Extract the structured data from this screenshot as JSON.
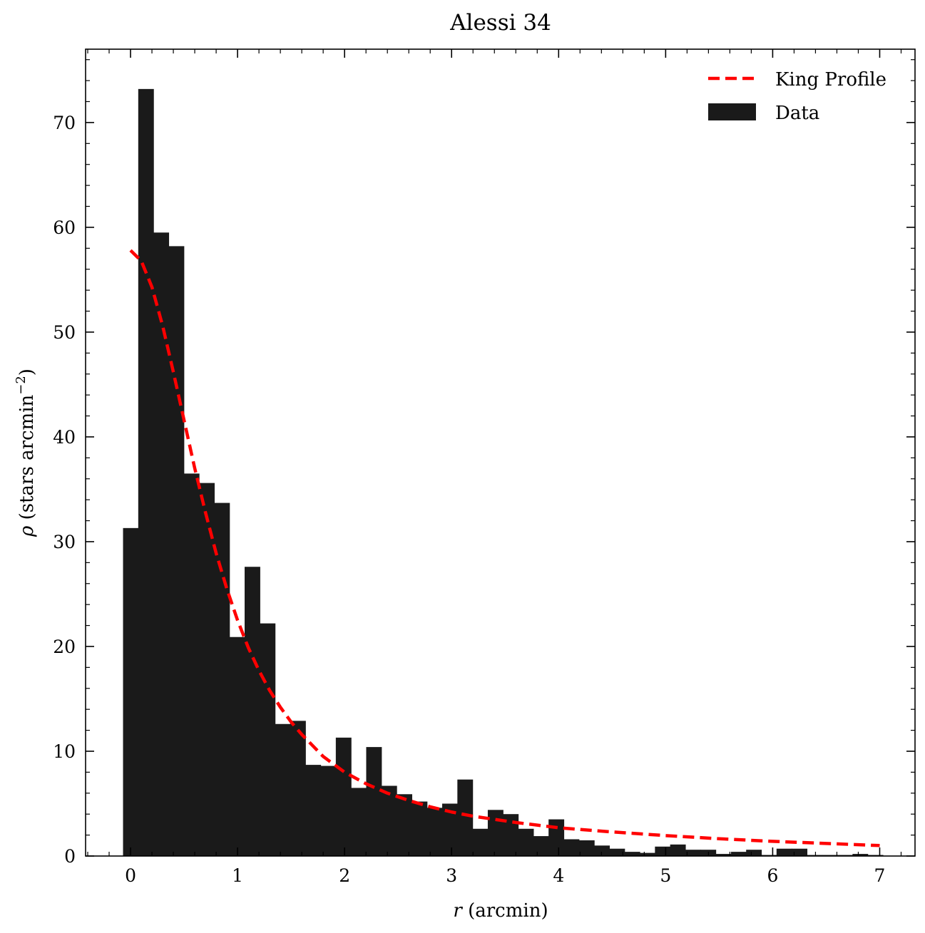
{
  "chart_data": {
    "type": "bar",
    "title": "Alessi 34",
    "xlabel_italic": "r",
    "xlabel_rest": " (arcmin)",
    "ylabel_italic": "ρ",
    "ylabel_rest": " (stars arcmin",
    "ylabel_sup": "−2",
    "ylabel_close": ")",
    "xlim": [
      -0.42,
      7.33
    ],
    "ylim": [
      0,
      77
    ],
    "xticks": [
      0,
      1,
      2,
      3,
      4,
      5,
      6,
      7
    ],
    "yticks": [
      0,
      10,
      20,
      30,
      40,
      50,
      60,
      70
    ],
    "legend": {
      "position": "top-right",
      "entries": [
        {
          "label": "King Profile",
          "kind": "line",
          "color": "#ff0000"
        },
        {
          "label": "Data",
          "kind": "patch",
          "color": "#1a1a1a"
        }
      ]
    },
    "histogram": {
      "name": "Data",
      "color": "#1a1a1a",
      "bin_width": 0.142,
      "bin_starts": [
        -0.07,
        0.072,
        0.214,
        0.356,
        0.498,
        0.64,
        0.782,
        0.924,
        1.066,
        1.208,
        1.35,
        1.492,
        1.634,
        1.776,
        1.918,
        2.06,
        2.202,
        2.344,
        2.486,
        2.628,
        2.77,
        2.912,
        3.054,
        3.196,
        3.338,
        3.48,
        3.622,
        3.764,
        3.906,
        4.048,
        4.19,
        4.332,
        4.474,
        4.616,
        4.758,
        4.9,
        5.042,
        5.184,
        5.326,
        5.468,
        5.61,
        5.752,
        5.894,
        6.036,
        6.178,
        6.32,
        6.462,
        6.604,
        6.746,
        6.888
      ],
      "values": [
        31.3,
        73.2,
        59.5,
        58.2,
        36.5,
        35.6,
        33.7,
        20.9,
        27.6,
        22.2,
        12.6,
        12.9,
        8.7,
        8.6,
        11.3,
        6.5,
        10.4,
        6.7,
        5.9,
        5.2,
        4.6,
        5.0,
        7.3,
        2.6,
        4.4,
        4.0,
        2.6,
        1.9,
        3.5,
        1.6,
        1.5,
        1.0,
        0.7,
        0.4,
        0.3,
        0.9,
        1.1,
        0.6,
        0.6,
        0.2,
        0.4,
        0.6,
        0.1,
        0.7,
        0.7,
        0.1,
        0.1,
        0.1,
        0.2,
        0.1
      ]
    },
    "king_profile": {
      "name": "King Profile",
      "color": "#ff0000",
      "x": [
        0.0,
        0.1,
        0.2,
        0.3,
        0.4,
        0.5,
        0.6,
        0.7,
        0.8,
        0.9,
        1.0,
        1.1,
        1.2,
        1.3,
        1.4,
        1.5,
        1.6,
        1.8,
        2.0,
        2.2,
        2.4,
        2.6,
        2.8,
        3.0,
        3.2,
        3.4,
        3.6,
        3.8,
        4.0,
        4.5,
        5.0,
        5.5,
        6.0,
        6.5,
        7.0
      ],
      "y": [
        57.8,
        56.8,
        54.3,
        50.6,
        46.2,
        41.6,
        37.0,
        32.8,
        28.9,
        25.5,
        22.5,
        19.9,
        17.7,
        15.8,
        14.2,
        12.8,
        11.6,
        9.5,
        8.0,
        6.9,
        6.0,
        5.3,
        4.7,
        4.2,
        3.8,
        3.5,
        3.2,
        2.95,
        2.7,
        2.3,
        1.95,
        1.65,
        1.4,
        1.2,
        1.0
      ]
    }
  }
}
